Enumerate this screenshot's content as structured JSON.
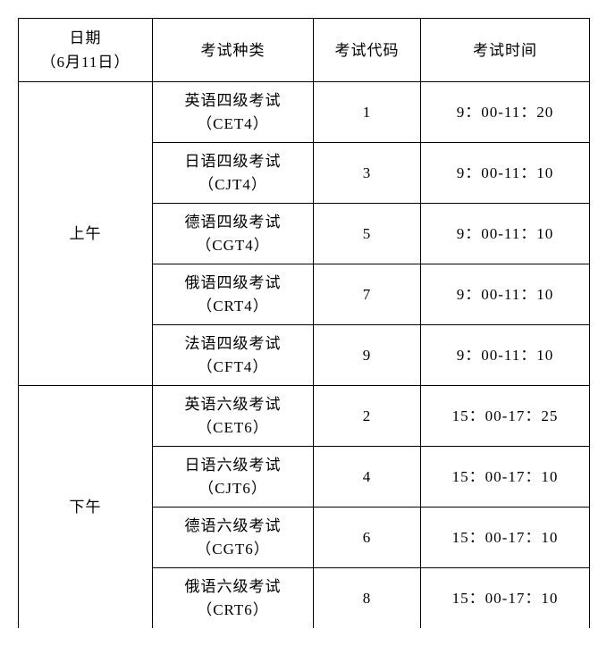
{
  "headers": {
    "date_line1": "日期",
    "date_line2": "（6月11日）",
    "exam_type": "考试种类",
    "exam_code": "考试代码",
    "exam_time": "考试时间"
  },
  "sessions": [
    {
      "label": "上午",
      "rows": [
        {
          "type_main": "英语四级考试",
          "type_sub": "（CET4）",
          "code": "1",
          "time": "9：00-11：20"
        },
        {
          "type_main": "日语四级考试",
          "type_sub": "（CJT4）",
          "code": "3",
          "time": "9：00-11：10"
        },
        {
          "type_main": "德语四级考试",
          "type_sub": "（CGT4）",
          "code": "5",
          "time": "9：00-11：10"
        },
        {
          "type_main": "俄语四级考试",
          "type_sub": "（CRT4）",
          "code": "7",
          "time": "9：00-11：10"
        },
        {
          "type_main": "法语四级考试",
          "type_sub": "（CFT4）",
          "code": "9",
          "time": "9：00-11：10"
        }
      ]
    },
    {
      "label": "下午",
      "rows": [
        {
          "type_main": "英语六级考试",
          "type_sub": "（CET6）",
          "code": "2",
          "time": "15：00-17：25"
        },
        {
          "type_main": "日语六级考试",
          "type_sub": "（CJT6）",
          "code": "4",
          "time": "15：00-17：10"
        },
        {
          "type_main": "德语六级考试",
          "type_sub": "（CGT6）",
          "code": "6",
          "time": "15：00-17：10"
        },
        {
          "type_main": "俄语六级考试",
          "type_sub": "（CRT6）",
          "code": "8",
          "time": "15：00-17：10"
        }
      ]
    }
  ]
}
